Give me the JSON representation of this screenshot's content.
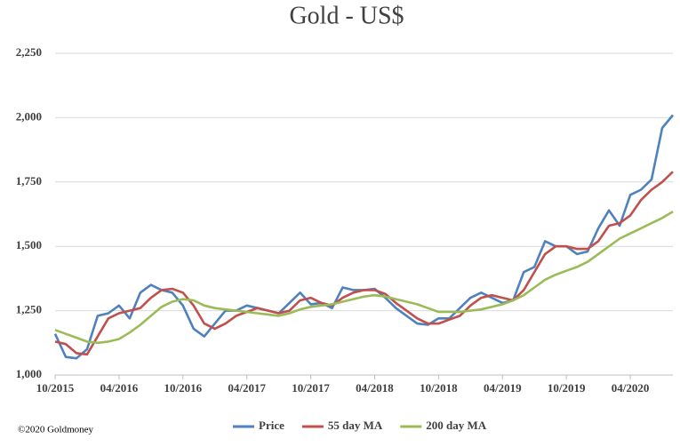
{
  "chart_data": {
    "type": "line",
    "title": "Gold - US$",
    "x": [
      "10/2015",
      "11/2015",
      "12/2015",
      "01/2016",
      "02/2016",
      "03/2016",
      "04/2016",
      "05/2016",
      "06/2016",
      "07/2016",
      "08/2016",
      "09/2016",
      "10/2016",
      "11/2016",
      "12/2016",
      "01/2017",
      "02/2017",
      "03/2017",
      "04/2017",
      "05/2017",
      "06/2017",
      "07/2017",
      "08/2017",
      "09/2017",
      "10/2017",
      "11/2017",
      "12/2017",
      "01/2018",
      "02/2018",
      "03/2018",
      "04/2018",
      "05/2018",
      "06/2018",
      "07/2018",
      "08/2018",
      "09/2018",
      "10/2018",
      "11/2018",
      "12/2018",
      "01/2019",
      "02/2019",
      "03/2019",
      "04/2019",
      "05/2019",
      "06/2019",
      "07/2019",
      "08/2019",
      "09/2019",
      "10/2019",
      "11/2019",
      "12/2019",
      "01/2020",
      "02/2020",
      "03/2020",
      "04/2020",
      "05/2020",
      "06/2020",
      "07/2020",
      "08/2020"
    ],
    "series": [
      {
        "name": "Price",
        "color": "#4f81bd",
        "values": [
          1160,
          1070,
          1065,
          1100,
          1230,
          1240,
          1270,
          1220,
          1320,
          1350,
          1330,
          1320,
          1270,
          1180,
          1150,
          1200,
          1250,
          1250,
          1270,
          1260,
          1250,
          1240,
          1280,
          1320,
          1275,
          1280,
          1260,
          1340,
          1330,
          1330,
          1335,
          1300,
          1260,
          1230,
          1200,
          1195,
          1220,
          1220,
          1260,
          1300,
          1320,
          1300,
          1280,
          1290,
          1400,
          1420,
          1520,
          1500,
          1500,
          1470,
          1480,
          1570,
          1640,
          1580,
          1700,
          1720,
          1760,
          1960,
          2010
        ]
      },
      {
        "name": "55 day MA",
        "color": "#c0504d",
        "values": [
          1130,
          1120,
          1085,
          1080,
          1150,
          1220,
          1240,
          1250,
          1260,
          1300,
          1330,
          1335,
          1320,
          1270,
          1200,
          1180,
          1200,
          1230,
          1245,
          1260,
          1250,
          1240,
          1250,
          1290,
          1300,
          1280,
          1270,
          1300,
          1320,
          1330,
          1330,
          1315,
          1280,
          1250,
          1220,
          1200,
          1200,
          1215,
          1230,
          1270,
          1300,
          1310,
          1300,
          1290,
          1330,
          1400,
          1470,
          1500,
          1500,
          1490,
          1490,
          1520,
          1580,
          1590,
          1620,
          1680,
          1720,
          1750,
          1790
        ]
      },
      {
        "name": "200 day MA",
        "color": "#9bbb59",
        "values": [
          1175,
          1160,
          1145,
          1130,
          1125,
          1130,
          1140,
          1165,
          1195,
          1230,
          1265,
          1285,
          1295,
          1290,
          1270,
          1260,
          1255,
          1250,
          1245,
          1240,
          1235,
          1230,
          1240,
          1255,
          1265,
          1270,
          1275,
          1285,
          1295,
          1305,
          1310,
          1305,
          1295,
          1285,
          1275,
          1260,
          1245,
          1245,
          1245,
          1250,
          1255,
          1265,
          1275,
          1290,
          1310,
          1340,
          1370,
          1390,
          1405,
          1420,
          1440,
          1470,
          1500,
          1530,
          1550,
          1570,
          1590,
          1610,
          1635
        ]
      }
    ],
    "xlim": [
      "10/2015",
      "08/2020"
    ],
    "xticks": [
      "10/2015",
      "04/2016",
      "10/2016",
      "04/2017",
      "10/2017",
      "04/2018",
      "10/2018",
      "04/2019",
      "10/2019",
      "04/2020"
    ],
    "ylim": [
      1000,
      2250
    ],
    "yticks": [
      {
        "value": 1000,
        "label": "1,000"
      },
      {
        "value": 1250,
        "label": "1,250"
      },
      {
        "value": 1500,
        "label": "1,500"
      },
      {
        "value": 1750,
        "label": "1,750"
      },
      {
        "value": 2000,
        "label": "2,000"
      },
      {
        "value": 2250,
        "label": "2,250"
      }
    ],
    "grid": true,
    "legend": "bottom",
    "footnote": "©2020 Goldmoney"
  }
}
